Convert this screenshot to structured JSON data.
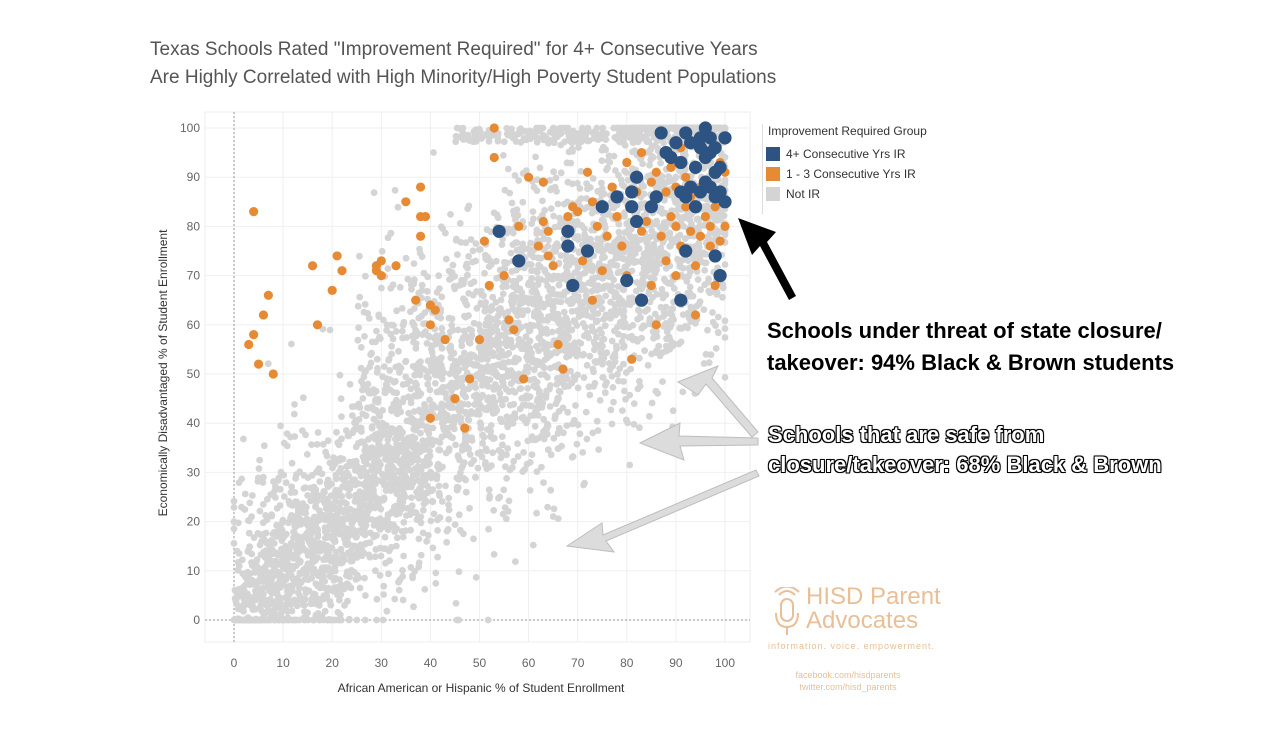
{
  "title": {
    "line1": "Texas Schools Rated \"Improvement Required\" for 4+ Consecutive Years",
    "line2": "Are Highly Correlated with High Minority/High Poverty Student Populations"
  },
  "legend": {
    "title": "Improvement Required Group",
    "items": [
      {
        "label": "4+ Consecutive Yrs IR",
        "color": "#2c5382"
      },
      {
        "label": "1 - 3 Consecutive Yrs IR",
        "color": "#e68b33"
      },
      {
        "label": "Not IR",
        "color": "#d4d4d4"
      }
    ]
  },
  "annotations": {
    "threat_line1": "Schools under threat of state closure/",
    "threat_line2": "takeover: 94% Black & Brown students",
    "safe_line1": "Schools that are safe from",
    "safe_line2": "closure/takeover: 68% Black & Brown"
  },
  "watermark": {
    "name_line1": "HISD Parent",
    "name_line2": "Advocates",
    "tagline": "information. voice. empowerment.",
    "facebook": "facebook.com/hisdparents",
    "twitter": "twitter.com/hisd_parents"
  },
  "chart_data": {
    "type": "scatter",
    "xlabel": "African American or Hispanic % of Student Enrollment",
    "ylabel": "Economically Disadvantaged % of Student Enrollment",
    "xlim": [
      0,
      100
    ],
    "ylim": [
      0,
      100
    ],
    "xticks": [
      0,
      10,
      20,
      30,
      40,
      50,
      60,
      70,
      80,
      90,
      100
    ],
    "yticks": [
      0,
      10,
      20,
      30,
      40,
      50,
      60,
      70,
      80,
      90,
      100
    ],
    "grid": true,
    "legend_position": "top-right",
    "series": [
      {
        "name": "4+ Consecutive Yrs IR",
        "color": "#2c5382",
        "points": [
          [
            54,
            79
          ],
          [
            58,
            73
          ],
          [
            68,
            76
          ],
          [
            68,
            79
          ],
          [
            69,
            68
          ],
          [
            72,
            75
          ],
          [
            75,
            84
          ],
          [
            78,
            86
          ],
          [
            80,
            69
          ],
          [
            81,
            87
          ],
          [
            81,
            84
          ],
          [
            82,
            90
          ],
          [
            82,
            81
          ],
          [
            83,
            65
          ],
          [
            85,
            84
          ],
          [
            86,
            86
          ],
          [
            87,
            99
          ],
          [
            88,
            95
          ],
          [
            89,
            94
          ],
          [
            90,
            97
          ],
          [
            91,
            65
          ],
          [
            91,
            87
          ],
          [
            91,
            93
          ],
          [
            92,
            86
          ],
          [
            92,
            99
          ],
          [
            92,
            75
          ],
          [
            93,
            97
          ],
          [
            93,
            88
          ],
          [
            94,
            92
          ],
          [
            94,
            84
          ],
          [
            95,
            98
          ],
          [
            95,
            96
          ],
          [
            95,
            87
          ],
          [
            96,
            100
          ],
          [
            96,
            94
          ],
          [
            96,
            89
          ],
          [
            97,
            95
          ],
          [
            97,
            88
          ],
          [
            97,
            98
          ],
          [
            98,
            91
          ],
          [
            98,
            96
          ],
          [
            98,
            86
          ],
          [
            98,
            74
          ],
          [
            99,
            92
          ],
          [
            99,
            87
          ],
          [
            99,
            70
          ],
          [
            100,
            98
          ],
          [
            100,
            85
          ]
        ]
      },
      {
        "name": "1 - 3 Consecutive Yrs IR",
        "color": "#e68b33",
        "points": [
          [
            4,
            83
          ],
          [
            3,
            56
          ],
          [
            4,
            58
          ],
          [
            5,
            52
          ],
          [
            6,
            62
          ],
          [
            7,
            66
          ],
          [
            8,
            50
          ],
          [
            16,
            72
          ],
          [
            17,
            60
          ],
          [
            20,
            67
          ],
          [
            21,
            74
          ],
          [
            22,
            71
          ],
          [
            29,
            71
          ],
          [
            29,
            72
          ],
          [
            30,
            70
          ],
          [
            30,
            73
          ],
          [
            33,
            72
          ],
          [
            35,
            85
          ],
          [
            37,
            65
          ],
          [
            38,
            88
          ],
          [
            38,
            78
          ],
          [
            38,
            82
          ],
          [
            39,
            82
          ],
          [
            40,
            64
          ],
          [
            40,
            60
          ],
          [
            40,
            41
          ],
          [
            41,
            63
          ],
          [
            43,
            57
          ],
          [
            45,
            45
          ],
          [
            47,
            39
          ],
          [
            48,
            49
          ],
          [
            50,
            57
          ],
          [
            51,
            77
          ],
          [
            52,
            68
          ],
          [
            53,
            100
          ],
          [
            53,
            94
          ],
          [
            55,
            70
          ],
          [
            56,
            61
          ],
          [
            57,
            59
          ],
          [
            58,
            80
          ],
          [
            59,
            49
          ],
          [
            60,
            90
          ],
          [
            62,
            76
          ],
          [
            63,
            89
          ],
          [
            63,
            81
          ],
          [
            64,
            74
          ],
          [
            64,
            79
          ],
          [
            65,
            72
          ],
          [
            66,
            56
          ],
          [
            67,
            51
          ],
          [
            68,
            82
          ],
          [
            69,
            84
          ],
          [
            70,
            83
          ],
          [
            71,
            73
          ],
          [
            72,
            91
          ],
          [
            73,
            85
          ],
          [
            73,
            65
          ],
          [
            74,
            80
          ],
          [
            75,
            71
          ],
          [
            76,
            78
          ],
          [
            77,
            88
          ],
          [
            78,
            82
          ],
          [
            79,
            76
          ],
          [
            80,
            93
          ],
          [
            80,
            70
          ],
          [
            81,
            53
          ],
          [
            82,
            87
          ],
          [
            83,
            95
          ],
          [
            83,
            79
          ],
          [
            84,
            81
          ],
          [
            85,
            89
          ],
          [
            85,
            68
          ],
          [
            86,
            91
          ],
          [
            86,
            60
          ],
          [
            87,
            78
          ],
          [
            88,
            87
          ],
          [
            88,
            73
          ],
          [
            89,
            82
          ],
          [
            89,
            92
          ],
          [
            90,
            80
          ],
          [
            90,
            88
          ],
          [
            90,
            70
          ],
          [
            91,
            76
          ],
          [
            91,
            96
          ],
          [
            92,
            84
          ],
          [
            92,
            90
          ],
          [
            93,
            79
          ],
          [
            93,
            86
          ],
          [
            94,
            72
          ],
          [
            94,
            62
          ],
          [
            95,
            78
          ],
          [
            95,
            88
          ],
          [
            96,
            82
          ],
          [
            96,
            94
          ],
          [
            97,
            76
          ],
          [
            97,
            80
          ],
          [
            98,
            68
          ],
          [
            98,
            84
          ],
          [
            99,
            77
          ],
          [
            99,
            93
          ],
          [
            100,
            80
          ],
          [
            100,
            91
          ]
        ]
      },
      {
        "name": "Not IR",
        "color": "#d4d4d4",
        "points": "many (several thousand school points); rendered procedurally"
      }
    ]
  }
}
